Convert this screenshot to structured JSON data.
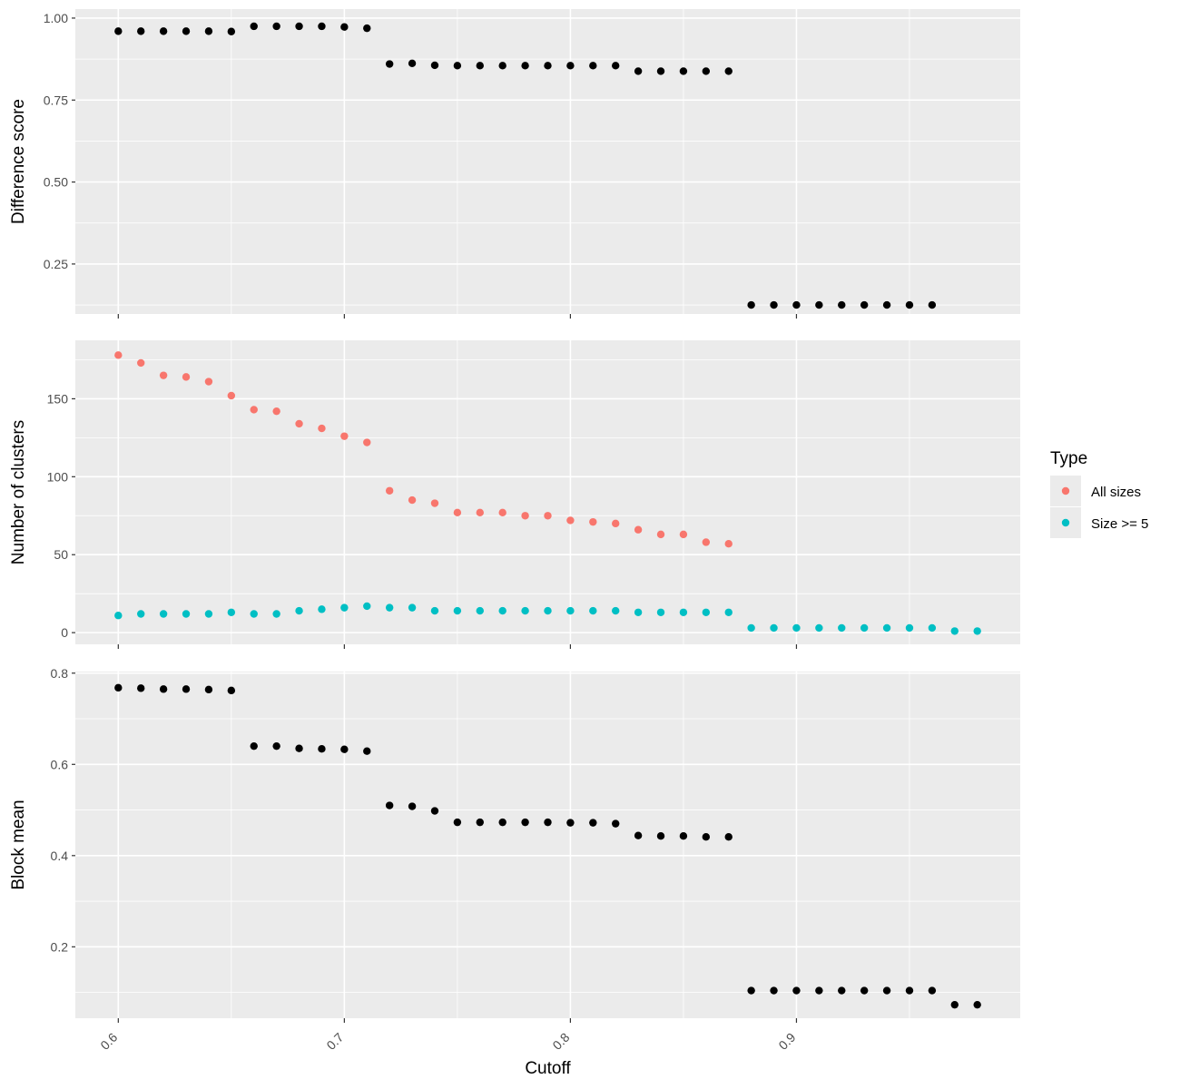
{
  "chart_data": [
    {
      "type": "scatter",
      "ylabel": "Difference score",
      "xlim": [
        0.581,
        0.999
      ],
      "ylim": [
        0.0975,
        1.0275
      ],
      "x_ticks": [
        0.6,
        0.7,
        0.8,
        0.9
      ],
      "y_ticks": [
        0.25,
        0.5,
        0.75,
        1.0
      ],
      "y_tick_labels": [
        "0.25",
        "0.50",
        "0.75",
        "1.00"
      ],
      "grid": true,
      "series": [
        {
          "color": "#000000",
          "x": [
            0.6,
            0.61,
            0.62,
            0.63,
            0.64,
            0.65,
            0.66,
            0.67,
            0.68,
            0.69,
            0.7,
            0.71,
            0.72,
            0.73,
            0.74,
            0.75,
            0.76,
            0.77,
            0.78,
            0.79,
            0.8,
            0.81,
            0.82,
            0.83,
            0.84,
            0.85,
            0.86,
            0.87,
            0.88,
            0.89,
            0.9,
            0.91,
            0.92,
            0.93,
            0.94,
            0.95,
            0.96
          ],
          "values": [
            0.96,
            0.96,
            0.96,
            0.96,
            0.96,
            0.959,
            0.975,
            0.975,
            0.975,
            0.975,
            0.973,
            0.969,
            0.86,
            0.862,
            0.856,
            0.855,
            0.855,
            0.855,
            0.855,
            0.855,
            0.855,
            0.855,
            0.855,
            0.838,
            0.838,
            0.838,
            0.838,
            0.838,
            0.125,
            0.125,
            0.125,
            0.125,
            0.125,
            0.125,
            0.125,
            0.125,
            0.125
          ]
        }
      ]
    },
    {
      "type": "scatter",
      "ylabel": "Number of clusters",
      "xlim": [
        0.581,
        0.999
      ],
      "ylim": [
        -7.5,
        187.5
      ],
      "x_ticks": [
        0.6,
        0.7,
        0.8,
        0.9
      ],
      "y_ticks": [
        0,
        50,
        100,
        150
      ],
      "y_tick_labels": [
        "0",
        "50",
        "100",
        "150"
      ],
      "grid": true,
      "legend": {
        "title": "Type",
        "position": "right",
        "entries": [
          {
            "label": "All sizes",
            "color": "#F8766D"
          },
          {
            "label": "Size >= 5",
            "color": "#00BFC4"
          }
        ]
      },
      "series": [
        {
          "name": "All sizes",
          "color": "#F8766D",
          "x": [
            0.6,
            0.61,
            0.62,
            0.63,
            0.64,
            0.65,
            0.66,
            0.67,
            0.68,
            0.69,
            0.7,
            0.71,
            0.72,
            0.73,
            0.74,
            0.75,
            0.76,
            0.77,
            0.78,
            0.79,
            0.8,
            0.81,
            0.82,
            0.83,
            0.84,
            0.85,
            0.86,
            0.87
          ],
          "values": [
            178,
            173,
            165,
            164,
            161,
            152,
            143,
            142,
            134,
            131,
            126,
            122,
            91,
            85,
            83,
            77,
            77,
            77,
            75,
            75,
            72,
            71,
            70,
            66,
            63,
            63,
            58,
            57
          ]
        },
        {
          "name": "Size >= 5",
          "color": "#00BFC4",
          "x": [
            0.6,
            0.61,
            0.62,
            0.63,
            0.64,
            0.65,
            0.66,
            0.67,
            0.68,
            0.69,
            0.7,
            0.71,
            0.72,
            0.73,
            0.74,
            0.75,
            0.76,
            0.77,
            0.78,
            0.79,
            0.8,
            0.81,
            0.82,
            0.83,
            0.84,
            0.85,
            0.86,
            0.87,
            0.88,
            0.89,
            0.9,
            0.91,
            0.92,
            0.93,
            0.94,
            0.95,
            0.96,
            0.97,
            0.98
          ],
          "values": [
            11,
            12,
            12,
            12,
            12,
            13,
            12,
            12,
            14,
            15,
            16,
            17,
            16,
            16,
            14,
            14,
            14,
            14,
            14,
            14,
            14,
            14,
            14,
            13,
            13,
            13,
            13,
            13,
            3,
            3,
            3,
            3,
            3,
            3,
            3,
            3,
            3,
            1,
            1
          ]
        }
      ]
    },
    {
      "type": "scatter",
      "ylabel": "Block mean",
      "xlabel": "Cutoff",
      "xlim": [
        0.581,
        0.999
      ],
      "ylim": [
        0.0435,
        0.8035
      ],
      "x_ticks": [
        0.6,
        0.7,
        0.8,
        0.9
      ],
      "x_tick_labels": [
        "0.6",
        "0.7",
        "0.8",
        "0.9"
      ],
      "y_ticks": [
        0.2,
        0.4,
        0.6,
        0.8
      ],
      "y_tick_labels": [
        "0.2",
        "0.4",
        "0.6",
        "0.8"
      ],
      "grid": true,
      "series": [
        {
          "color": "#000000",
          "x": [
            0.6,
            0.61,
            0.62,
            0.63,
            0.64,
            0.65,
            0.66,
            0.67,
            0.68,
            0.69,
            0.7,
            0.71,
            0.72,
            0.73,
            0.74,
            0.75,
            0.76,
            0.77,
            0.78,
            0.79,
            0.8,
            0.81,
            0.82,
            0.83,
            0.84,
            0.85,
            0.86,
            0.87,
            0.88,
            0.89,
            0.9,
            0.91,
            0.92,
            0.93,
            0.94,
            0.95,
            0.96,
            0.97,
            0.98
          ],
          "values": [
            0.768,
            0.767,
            0.765,
            0.765,
            0.764,
            0.762,
            0.64,
            0.64,
            0.635,
            0.634,
            0.633,
            0.629,
            0.51,
            0.508,
            0.498,
            0.473,
            0.473,
            0.473,
            0.473,
            0.473,
            0.472,
            0.472,
            0.47,
            0.444,
            0.443,
            0.443,
            0.441,
            0.441,
            0.104,
            0.104,
            0.104,
            0.104,
            0.104,
            0.104,
            0.104,
            0.104,
            0.104,
            0.073,
            0.073
          ]
        }
      ]
    }
  ]
}
